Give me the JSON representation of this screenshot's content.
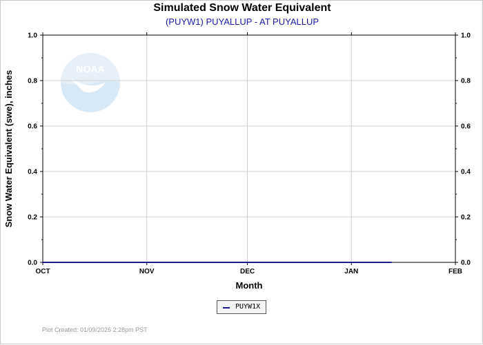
{
  "chart_data": {
    "type": "line",
    "title": "Simulated Snow Water Equivalent",
    "subtitle": "(PUYW1) PUYALLUP - AT PUYALLUP",
    "xlabel": "Month",
    "ylabel": "Snow Water Equivalent (swe),  inches",
    "x_ticks": [
      "OCT",
      "NOV",
      "DEC",
      "JAN",
      "FEB"
    ],
    "x_range": [
      "2025-10-01",
      "2026-02-01"
    ],
    "ylim": [
      0,
      1.0
    ],
    "y_ticks": [
      "0.0",
      "0.2",
      "0.4",
      "0.6",
      "0.8",
      "1.0"
    ],
    "grid": true,
    "series": [
      {
        "name": "PUYW1X",
        "color": "#1a1a8c",
        "x": [
          "2025-10-01",
          "2026-01-13"
        ],
        "values": [
          0.0,
          0.0
        ]
      }
    ],
    "legend_position": "bottom-center"
  },
  "footer": "Plot Created: 01/09/2026 2:28pm PST",
  "watermark": "NOAA"
}
